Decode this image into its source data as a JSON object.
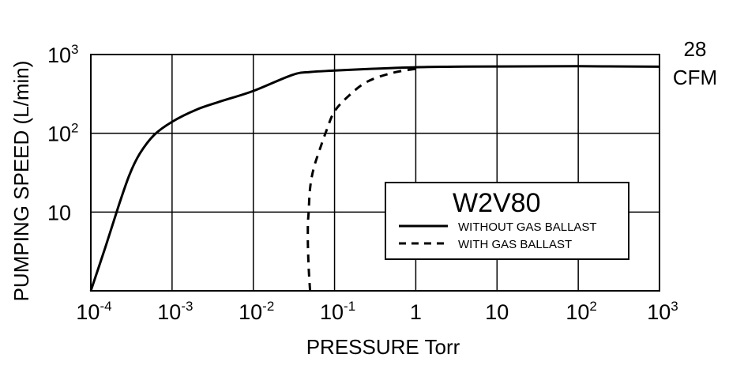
{
  "chart_data": {
    "type": "line",
    "xlabel": "PRESSURE Torr",
    "ylabel": "PUMPING SPEED (L/min)",
    "x_scale": "log",
    "y_scale": "log",
    "xlim": [
      0.0001,
      1000
    ],
    "ylim": [
      1,
      1000
    ],
    "grid": true,
    "x_ticks": [
      {
        "base": "10",
        "exp": "-4",
        "value": 0.0001
      },
      {
        "base": "10",
        "exp": "-3",
        "value": 0.001
      },
      {
        "base": "10",
        "exp": "-2",
        "value": 0.01
      },
      {
        "base": "10",
        "exp": "-1",
        "value": 0.1
      },
      {
        "base": "1",
        "exp": "",
        "value": 1
      },
      {
        "base": "10",
        "exp": "",
        "value": 10
      },
      {
        "base": "10",
        "exp": "2",
        "value": 100
      },
      {
        "base": "10",
        "exp": "3",
        "value": 1000
      }
    ],
    "y_ticks": [
      {
        "base": "10",
        "exp": "3",
        "value": 1000
      },
      {
        "base": "10",
        "exp": "2",
        "value": 100
      },
      {
        "base": "10",
        "exp": "",
        "value": 10
      }
    ],
    "right_annotation": [
      "28",
      "CFM"
    ],
    "legend": {
      "title": "W2V80",
      "placement": "center-right"
    },
    "series": [
      {
        "name": "WITHOUT GAS BALLAST",
        "style": "solid",
        "color": "#000000",
        "points": [
          [
            0.0001,
            1
          ],
          [
            0.00015,
            3.5
          ],
          [
            0.00022,
            12
          ],
          [
            0.0003,
            30
          ],
          [
            0.0004,
            55
          ],
          [
            0.0006,
            95
          ],
          [
            0.001,
            140
          ],
          [
            0.002,
            200
          ],
          [
            0.004,
            255
          ],
          [
            0.01,
            345
          ],
          [
            0.03,
            550
          ],
          [
            0.05,
            600
          ],
          [
            0.1,
            625
          ],
          [
            0.3,
            660
          ],
          [
            1,
            690
          ],
          [
            3,
            700
          ],
          [
            10,
            705
          ],
          [
            100,
            710
          ],
          [
            1000,
            700
          ]
        ]
      },
      {
        "name": "WITH GAS BALLAST",
        "style": "dashed",
        "color": "#000000",
        "points": [
          [
            0.05,
            1
          ],
          [
            0.048,
            2
          ],
          [
            0.047,
            4
          ],
          [
            0.047,
            7
          ],
          [
            0.048,
            10
          ],
          [
            0.05,
            20
          ],
          [
            0.055,
            35
          ],
          [
            0.065,
            60
          ],
          [
            0.08,
            110
          ],
          [
            0.1,
            190
          ],
          [
            0.15,
            300
          ],
          [
            0.25,
            450
          ],
          [
            0.5,
            580
          ],
          [
            1.0,
            660
          ]
        ]
      }
    ]
  }
}
